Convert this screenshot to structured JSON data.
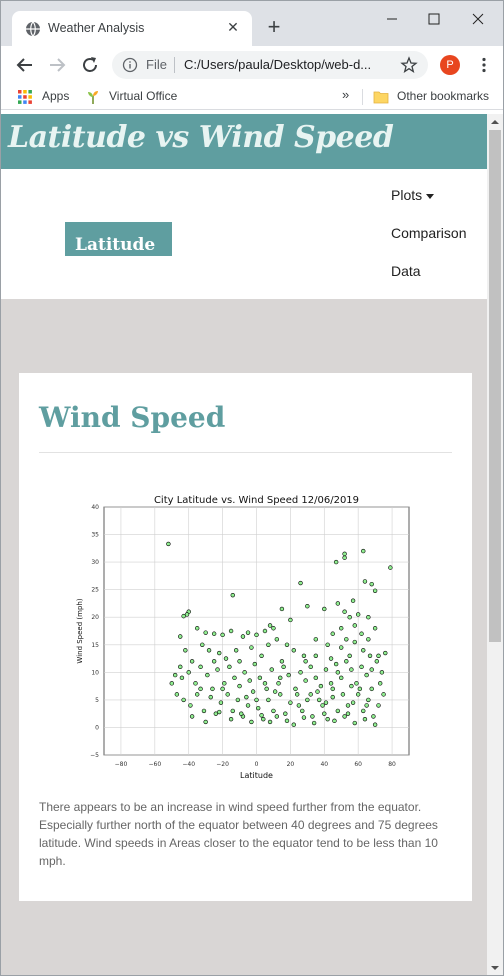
{
  "browser": {
    "tab_title": "Weather Analysis",
    "tab_close_icon": "close-icon",
    "new_tab_icon": "plus-icon",
    "address_scheme": "File",
    "address_url": "C:/Users/paula/Desktop/web-d...",
    "profile_initial": "P",
    "profile_color": "#e8461f",
    "bookmarks": {
      "apps": "Apps",
      "virtual_office": "Virtual Office",
      "chevron": "»",
      "other": "Other bookmarks"
    }
  },
  "page": {
    "header_title": "Latitude vs Wind Speed",
    "header_color": "#5f9ea0",
    "brand": "Latitude",
    "nav": {
      "plots": "Plots",
      "comparison": "Comparison",
      "data": "Data"
    },
    "card_title": "Wind Speed",
    "description": "There appears to be an increase in wind speed further from the equator. Especially further north of the equator between 40 degrees and 75 degrees latitude. Wind speeds in Areas closer to the equator tend to be less than 10 mph."
  },
  "chart_data": {
    "type": "scatter",
    "title": "City Latitude vs. Wind Speed 12/06/2019",
    "xlabel": "Latitude",
    "ylabel": "Wind Speed (mph)",
    "xlim": [
      -90,
      90
    ],
    "ylim": [
      -5,
      40
    ],
    "xticks": [
      -80,
      -60,
      -40,
      -20,
      0,
      20,
      40,
      60,
      80
    ],
    "yticks": [
      -5,
      0,
      5,
      10,
      15,
      20,
      25,
      30,
      35,
      40
    ],
    "grid": true,
    "marker_fill": "#90ee90",
    "marker_edge": "#000000",
    "points": [
      [
        -52,
        33.3
      ],
      [
        -14,
        24
      ],
      [
        63,
        32
      ],
      [
        52,
        31.5
      ],
      [
        52,
        30.8
      ],
      [
        47,
        30
      ],
      [
        64,
        26.5
      ],
      [
        26,
        26.2
      ],
      [
        79,
        29
      ],
      [
        68,
        26
      ],
      [
        70,
        24.8
      ],
      [
        -40,
        21
      ],
      [
        -41,
        20.5
      ],
      [
        -43,
        20.2
      ],
      [
        -45,
        16.5
      ],
      [
        -35,
        18
      ],
      [
        -30,
        17.2
      ],
      [
        -25,
        17
      ],
      [
        -20,
        16.8
      ],
      [
        -15,
        17.5
      ],
      [
        -8,
        16.5
      ],
      [
        -5,
        17.2
      ],
      [
        0,
        16.8
      ],
      [
        5,
        17.5
      ],
      [
        8,
        18.5
      ],
      [
        10,
        18
      ],
      [
        15,
        21.5
      ],
      [
        20,
        19.5
      ],
      [
        30,
        22
      ],
      [
        40,
        21.5
      ],
      [
        48,
        22.5
      ],
      [
        52,
        21
      ],
      [
        55,
        20
      ],
      [
        57,
        23
      ],
      [
        60,
        20.5
      ],
      [
        62,
        17
      ],
      [
        66,
        16
      ],
      [
        70,
        18
      ],
      [
        72,
        13
      ],
      [
        -42,
        14
      ],
      [
        -38,
        12
      ],
      [
        -32,
        15
      ],
      [
        -28,
        14
      ],
      [
        -22,
        13.5
      ],
      [
        -18,
        12.5
      ],
      [
        -12,
        14
      ],
      [
        -3,
        14.5
      ],
      [
        3,
        13
      ],
      [
        7,
        15
      ],
      [
        12,
        16
      ],
      [
        18,
        15
      ],
      [
        22,
        14
      ],
      [
        28,
        13
      ],
      [
        35,
        16
      ],
      [
        42,
        15
      ],
      [
        45,
        17
      ],
      [
        50,
        14.5
      ],
      [
        53,
        16
      ],
      [
        58,
        15.5
      ],
      [
        63,
        14
      ],
      [
        67,
        13
      ],
      [
        -44,
        9
      ],
      [
        -40,
        10
      ],
      [
        -36,
        8
      ],
      [
        -33,
        11
      ],
      [
        -29,
        9.5
      ],
      [
        -26,
        7
      ],
      [
        -23,
        10.5
      ],
      [
        -19,
        8
      ],
      [
        -16,
        11
      ],
      [
        -13,
        9
      ],
      [
        -10,
        7.5
      ],
      [
        -7,
        10
      ],
      [
        -4,
        8.5
      ],
      [
        -1,
        11.5
      ],
      [
        2,
        9
      ],
      [
        6,
        7
      ],
      [
        9,
        10.5
      ],
      [
        13,
        8
      ],
      [
        16,
        11
      ],
      [
        19,
        9.5
      ],
      [
        23,
        7
      ],
      [
        26,
        10
      ],
      [
        29,
        8.5
      ],
      [
        32,
        11
      ],
      [
        35,
        9
      ],
      [
        38,
        7.5
      ],
      [
        41,
        10.5
      ],
      [
        44,
        8
      ],
      [
        47,
        11.5
      ],
      [
        50,
        9
      ],
      [
        53,
        12
      ],
      [
        56,
        10.5
      ],
      [
        59,
        8
      ],
      [
        62,
        11
      ],
      [
        65,
        9.5
      ],
      [
        68,
        7
      ],
      [
        71,
        12
      ],
      [
        74,
        10
      ],
      [
        -43,
        5
      ],
      [
        -39,
        4
      ],
      [
        -35,
        6
      ],
      [
        -31,
        3
      ],
      [
        -27,
        5.5
      ],
      [
        -24,
        2.5
      ],
      [
        -21,
        4.5
      ],
      [
        -17,
        6
      ],
      [
        -14,
        3
      ],
      [
        -11,
        5
      ],
      [
        -8,
        2
      ],
      [
        -5,
        4
      ],
      [
        -2,
        6.5
      ],
      [
        1,
        3.5
      ],
      [
        4,
        1.5
      ],
      [
        7,
        5
      ],
      [
        10,
        3
      ],
      [
        14,
        6
      ],
      [
        17,
        2.5
      ],
      [
        20,
        4.5
      ],
      [
        24,
        6
      ],
      [
        27,
        3
      ],
      [
        30,
        5
      ],
      [
        33,
        2
      ],
      [
        36,
        6.5
      ],
      [
        39,
        4
      ],
      [
        42,
        1.5
      ],
      [
        45,
        5.5
      ],
      [
        48,
        3
      ],
      [
        51,
        6
      ],
      [
        54,
        2.5
      ],
      [
        57,
        4.5
      ],
      [
        60,
        6
      ],
      [
        63,
        3
      ],
      [
        66,
        5
      ],
      [
        69,
        2
      ],
      [
        72,
        4
      ],
      [
        75,
        6
      ],
      [
        -38,
        2
      ],
      [
        -30,
        1
      ],
      [
        -22,
        2.8
      ],
      [
        -15,
        1.5
      ],
      [
        -9,
        2.5
      ],
      [
        -3,
        1
      ],
      [
        3,
        2.2
      ],
      [
        8,
        1
      ],
      [
        12,
        2
      ],
      [
        18,
        1.2
      ],
      [
        22,
        0.5
      ],
      [
        28,
        1.8
      ],
      [
        34,
        0.8
      ],
      [
        40,
        2.5
      ],
      [
        46,
        1.2
      ],
      [
        52,
        2
      ],
      [
        58,
        0.8
      ],
      [
        64,
        1.5
      ],
      [
        70,
        0.5
      ],
      [
        -45,
        11
      ],
      [
        -20,
        7
      ],
      [
        0,
        5
      ],
      [
        15,
        12
      ],
      [
        25,
        4
      ],
      [
        35,
        13
      ],
      [
        45,
        7
      ],
      [
        55,
        13
      ],
      [
        65,
        4
      ],
      [
        -10,
        12
      ],
      [
        5,
        8
      ],
      [
        32,
        6
      ],
      [
        48,
        10
      ],
      [
        61,
        7
      ],
      [
        -33,
        7
      ],
      [
        -6,
        5.5
      ],
      [
        11,
        6.5
      ],
      [
        37,
        5
      ],
      [
        56,
        7.5
      ],
      [
        73,
        8
      ],
      [
        44,
        12.5
      ],
      [
        50,
        18
      ],
      [
        58,
        18.5
      ],
      [
        66,
        20
      ],
      [
        -25,
        12
      ],
      [
        14,
        9
      ],
      [
        29,
        12
      ],
      [
        41,
        4.5
      ],
      [
        54,
        4
      ],
      [
        68,
        10.5
      ],
      [
        -48,
        9.5
      ],
      [
        -47,
        6
      ],
      [
        -50,
        8
      ],
      [
        76,
        13.5
      ]
    ]
  }
}
